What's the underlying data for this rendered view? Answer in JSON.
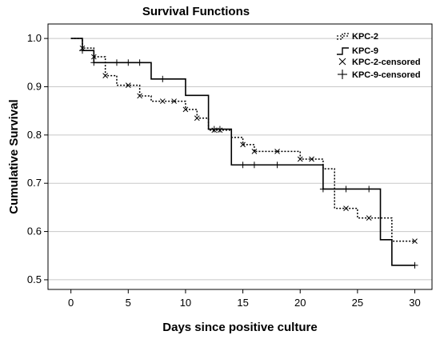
{
  "chart_data": {
    "type": "line",
    "title": "Survival Functions",
    "xlabel": "Days since positive culture",
    "ylabel": "Cumulative Survival",
    "xlim": [
      -2,
      31.5
    ],
    "ylim": [
      0.48,
      1.03
    ],
    "xticks": [
      0,
      5,
      10,
      15,
      20,
      25,
      30
    ],
    "yticks": [
      0.5,
      0.6,
      0.7,
      0.8,
      0.9,
      1.0
    ],
    "ytick_labels": [
      "0.5",
      "0.6",
      "0.7",
      "0.8",
      "0.9",
      "1.0"
    ],
    "grid": "horizontal",
    "legend_position": "top-right",
    "legend": [
      "KPC-2",
      "KPC-9",
      "KPC-2-censored",
      "KPC-9-censored"
    ],
    "series": [
      {
        "name": "KPC-2",
        "style": "dotted",
        "steps": [
          [
            0,
            1.0
          ],
          [
            1,
            0.98
          ],
          [
            2,
            0.962
          ],
          [
            3,
            0.923
          ],
          [
            4,
            0.903
          ],
          [
            6,
            0.881
          ],
          [
            7,
            0.87
          ],
          [
            10,
            0.853
          ],
          [
            11,
            0.835
          ],
          [
            12,
            0.81
          ],
          [
            14,
            0.795
          ],
          [
            15,
            0.78
          ],
          [
            16,
            0.766
          ],
          [
            20,
            0.75
          ],
          [
            22,
            0.73
          ],
          [
            23,
            0.648
          ],
          [
            25,
            0.628
          ],
          [
            28,
            0.58
          ],
          [
            30,
            0.58
          ]
        ],
        "censored": [
          1,
          2,
          3,
          5,
          6,
          8,
          9,
          10,
          11,
          12.5,
          13,
          15,
          16,
          18,
          20,
          21,
          24,
          26,
          30
        ]
      },
      {
        "name": "KPC-9",
        "style": "solid",
        "steps": [
          [
            0,
            1.0
          ],
          [
            1,
            0.975
          ],
          [
            2,
            0.95
          ],
          [
            7,
            0.916
          ],
          [
            10,
            0.882
          ],
          [
            12,
            0.812
          ],
          [
            14,
            0.738
          ],
          [
            22,
            0.688
          ],
          [
            27,
            0.583
          ],
          [
            28,
            0.53
          ],
          [
            30,
            0.53
          ]
        ],
        "censored": [
          1,
          2,
          4,
          5,
          6,
          8,
          12.5,
          13,
          15,
          16,
          18,
          22,
          24,
          26,
          30
        ]
      }
    ]
  }
}
